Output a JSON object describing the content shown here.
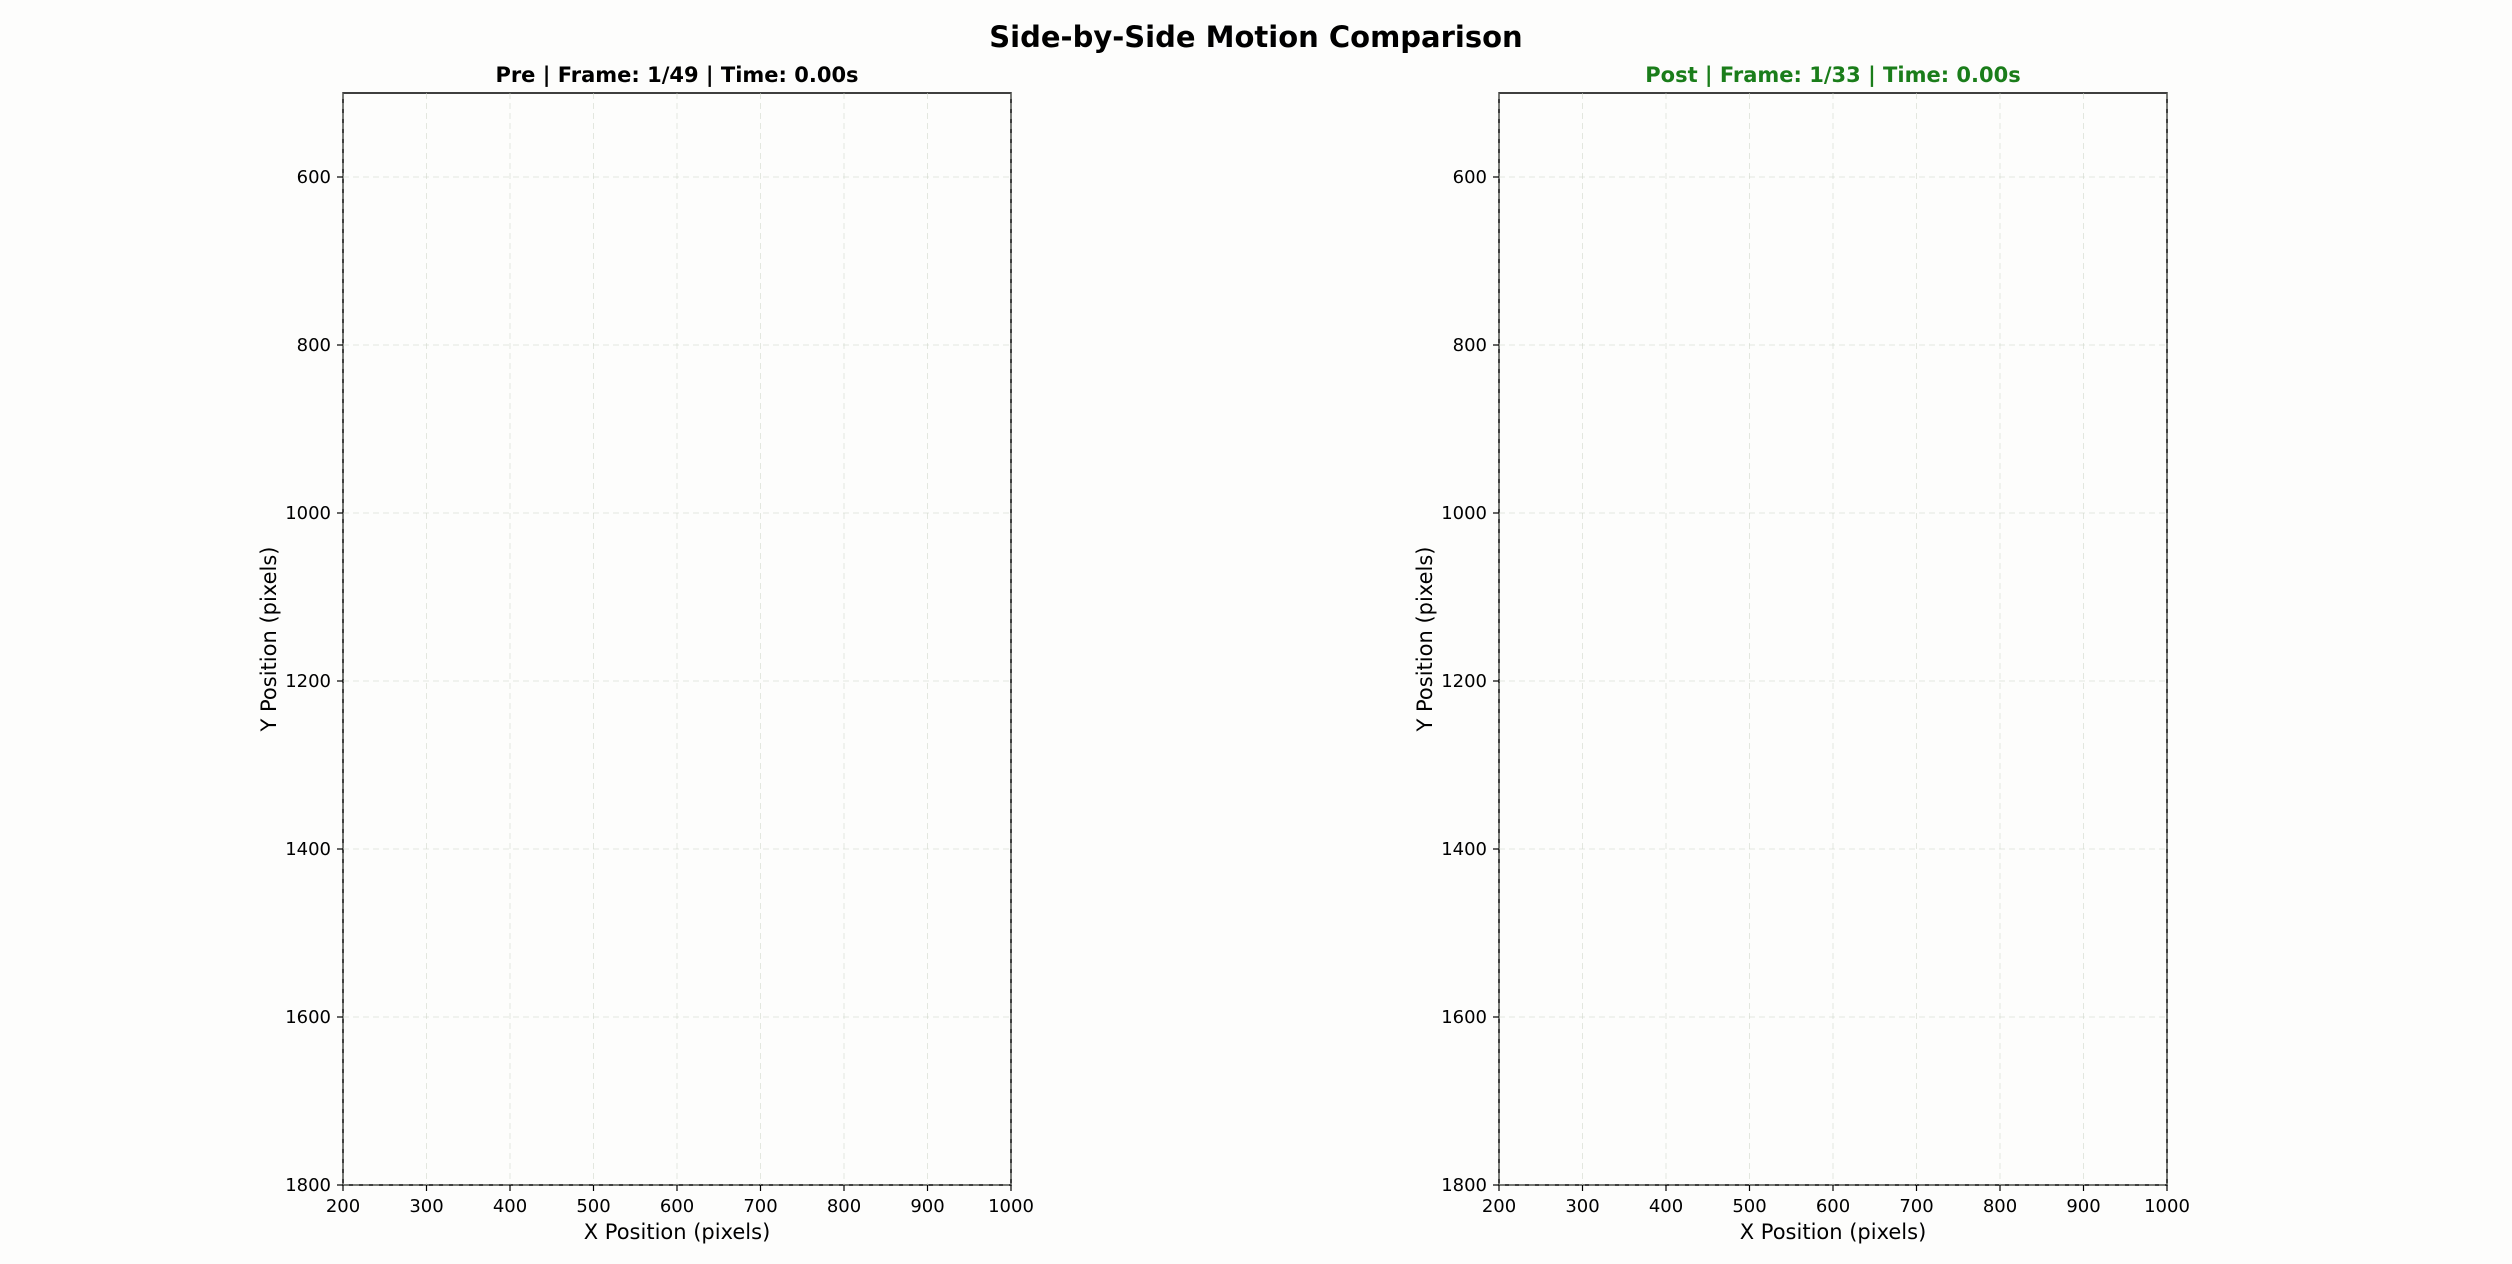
{
  "chart_data": {
    "suptitle": "Side-by-Side Motion Comparison",
    "panels": [
      {
        "type": "scatter",
        "title": "Pre | Frame: 1/49 | Time: 0.00s",
        "title_color": "#000000",
        "xlabel": "X Position (pixels)",
        "ylabel": "Y Position (pixels)",
        "xlim": [
          200,
          1000
        ],
        "ylim": [
          1800,
          500
        ],
        "y_inverted": true,
        "xticks": [
          200,
          300,
          400,
          500,
          600,
          700,
          800,
          900,
          1000
        ],
        "yticks": [
          600,
          800,
          1000,
          1200,
          1400,
          1600,
          1800
        ],
        "grid": true,
        "series": []
      },
      {
        "type": "scatter",
        "title": "Post | Frame: 1/33 | Time: 0.00s",
        "title_color": "#1a7d1a",
        "xlabel": "X Position (pixels)",
        "ylabel": "Y Position (pixels)",
        "xlim": [
          200,
          1000
        ],
        "ylim": [
          1800,
          500
        ],
        "y_inverted": true,
        "xticks": [
          200,
          300,
          400,
          500,
          600,
          700,
          800,
          900,
          1000
        ],
        "yticks": [
          600,
          800,
          1000,
          1200,
          1400,
          1600,
          1800
        ],
        "grid": true,
        "series": []
      }
    ]
  }
}
